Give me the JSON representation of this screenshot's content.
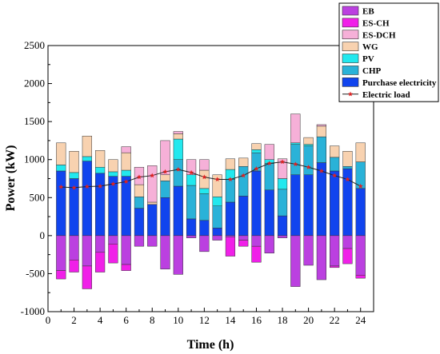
{
  "chart_data": {
    "type": "bar",
    "stacked": true,
    "title": "",
    "xlabel": "Time (h)",
    "ylabel": "Power (kW)",
    "xlim": [
      0,
      25
    ],
    "ylim": [
      -1000,
      2500
    ],
    "xticks": [
      0,
      2,
      4,
      6,
      8,
      10,
      12,
      14,
      16,
      18,
      20,
      22,
      24
    ],
    "yticks": [
      -1000,
      -500,
      0,
      500,
      1000,
      1500,
      2000,
      2500
    ],
    "grid": false,
    "legend_position": "top-right",
    "x": [
      1,
      2,
      3,
      4,
      5,
      6,
      7,
      8,
      9,
      10,
      11,
      12,
      13,
      14,
      15,
      16,
      17,
      18,
      19,
      20,
      21,
      22,
      23,
      24
    ],
    "series": [
      {
        "name": "Purchase electricity",
        "color": "#1144ee",
        "values": [
          850,
          750,
          980,
          820,
          780,
          780,
          360,
          410,
          500,
          650,
          220,
          200,
          100,
          440,
          520,
          850,
          600,
          260,
          800,
          800,
          960,
          850,
          880,
          620
        ]
      },
      {
        "name": "CHP",
        "color": "#2ab2d8",
        "values": [
          0,
          0,
          0,
          0,
          0,
          0,
          150,
          0,
          220,
          350,
          440,
          350,
          290,
          300,
          390,
          240,
          350,
          350,
          400,
          380,
          340,
          180,
          30,
          350
        ]
      },
      {
        "name": "PV",
        "color": "#22e8ee",
        "values": [
          80,
          80,
          60,
          80,
          60,
          80,
          0,
          0,
          0,
          270,
          140,
          70,
          120,
          130,
          0,
          40,
          50,
          140,
          20,
          20,
          0,
          0,
          0,
          0
        ]
      },
      {
        "name": "WG",
        "color": "#f8d2b0",
        "values": [
          290,
          280,
          270,
          220,
          160,
          230,
          160,
          30,
          80,
          70,
          0,
          240,
          290,
          140,
          110,
          80,
          0,
          0,
          0,
          90,
          140,
          150,
          200,
          250
        ]
      },
      {
        "name": "ES-DCH",
        "color": "#f6b0d8",
        "values": [
          0,
          0,
          0,
          0,
          0,
          80,
          230,
          480,
          450,
          30,
          200,
          140,
          0,
          0,
          0,
          0,
          200,
          260,
          380,
          0,
          20,
          0,
          0,
          0
        ]
      },
      {
        "name": "EB",
        "color": "#bb40e0",
        "values": [
          -460,
          -320,
          -400,
          -220,
          -110,
          -380,
          -140,
          -140,
          -440,
          -510,
          -30,
          -210,
          -60,
          -20,
          -60,
          -140,
          -230,
          -30,
          -670,
          -390,
          -580,
          -400,
          -170,
          -520
        ]
      },
      {
        "name": "ES-CH",
        "color": "#f020e8",
        "values": [
          -110,
          -160,
          -300,
          -260,
          -250,
          -80,
          0,
          0,
          0,
          0,
          0,
          0,
          0,
          -250,
          -80,
          -210,
          0,
          0,
          0,
          0,
          0,
          -20,
          -200,
          -40
        ]
      }
    ],
    "line_series": {
      "name": "Electric load",
      "color": "#dd2222",
      "values": [
        640,
        630,
        645,
        650,
        680,
        710,
        770,
        790,
        840,
        870,
        830,
        770,
        740,
        740,
        790,
        880,
        950,
        970,
        940,
        900,
        850,
        790,
        740,
        650
      ]
    },
    "legend_order": [
      "EB",
      "ES-CH",
      "ES-DCH",
      "WG",
      "PV",
      "CHP",
      "Purchase electricity",
      "Electric load"
    ]
  }
}
